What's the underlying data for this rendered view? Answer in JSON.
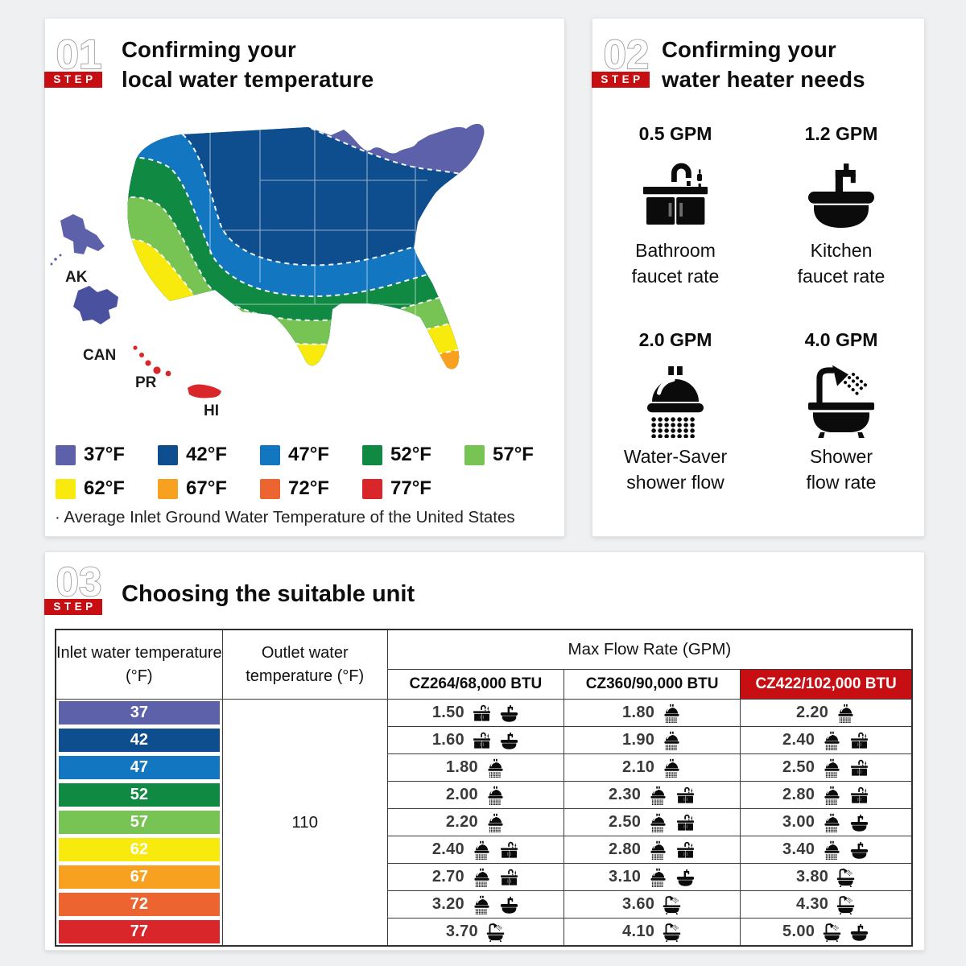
{
  "page_bg": "#eff0f2",
  "accent_red": "#c60e13",
  "step1": {
    "badge": {
      "number": "01",
      "label": "STEP"
    },
    "title_lines": [
      "Confirming your",
      "local water temperature"
    ],
    "map_labels": {
      "ak": "AK",
      "can": "CAN",
      "pr": "PR",
      "hi": "HI"
    },
    "legend": [
      {
        "label": "37°F",
        "color": "#5c61a9"
      },
      {
        "label": "42°F",
        "color": "#0f4e8e"
      },
      {
        "label": "47°F",
        "color": "#1276c1"
      },
      {
        "label": "52°F",
        "color": "#108a43"
      },
      {
        "label": "57°F",
        "color": "#77c353"
      },
      {
        "label": "62°F",
        "color": "#f8ea0d"
      },
      {
        "label": "67°F",
        "color": "#f8a01f"
      },
      {
        "label": "72°F",
        "color": "#ec6530"
      },
      {
        "label": "77°F",
        "color": "#d8262b"
      }
    ],
    "note": "· Average Inlet Ground Water Temperature of the United States"
  },
  "step2": {
    "badge": {
      "number": "02",
      "label": "STEP"
    },
    "title_lines": [
      "Confirming your",
      "water heater needs"
    ],
    "items": [
      {
        "gpm": "0.5 GPM",
        "icon": "bathroom-faucet",
        "caption": "Bathroom\nfaucet rate"
      },
      {
        "gpm": "1.2 GPM",
        "icon": "kitchen-faucet",
        "caption": "Kitchen\nfaucet rate"
      },
      {
        "gpm": "2.0 GPM",
        "icon": "shower-head",
        "caption": "Water-Saver\nshower flow"
      },
      {
        "gpm": "4.0 GPM",
        "icon": "bathtub",
        "caption": "Shower\nflow rate"
      }
    ]
  },
  "step3": {
    "badge": {
      "number": "03",
      "label": "STEP"
    },
    "title": "Choosing the suitable unit",
    "table": {
      "inlet_header": "Inlet water temperature (°F)",
      "outlet_header": "Outlet water temperature (°F)",
      "flow_header": "Max Flow Rate (GPM)",
      "models": [
        "CZ264/68,000 BTU",
        "CZ360/90,000 BTU",
        "CZ422/102,000 BTU"
      ],
      "highlight_model_index": 2,
      "outlet_value": "110",
      "rows": [
        {
          "inlet": "37",
          "color": "#5c61a9",
          "cells": [
            {
              "value": "1.50",
              "icons": [
                "bathroom-faucet",
                "kitchen-faucet"
              ]
            },
            {
              "value": "1.80",
              "icons": [
                "shower-head"
              ]
            },
            {
              "value": "2.20",
              "icons": [
                "shower-head"
              ]
            }
          ]
        },
        {
          "inlet": "42",
          "color": "#0f4e8e",
          "cells": [
            {
              "value": "1.60",
              "icons": [
                "bathroom-faucet",
                "kitchen-faucet"
              ]
            },
            {
              "value": "1.90",
              "icons": [
                "shower-head"
              ]
            },
            {
              "value": "2.40",
              "icons": [
                "shower-head",
                "bathroom-faucet"
              ]
            }
          ]
        },
        {
          "inlet": "47",
          "color": "#1276c1",
          "cells": [
            {
              "value": "1.80",
              "icons": [
                "shower-head"
              ]
            },
            {
              "value": "2.10",
              "icons": [
                "shower-head"
              ]
            },
            {
              "value": "2.50",
              "icons": [
                "shower-head",
                "bathroom-faucet"
              ]
            }
          ]
        },
        {
          "inlet": "52",
          "color": "#108a43",
          "cells": [
            {
              "value": "2.00",
              "icons": [
                "shower-head"
              ]
            },
            {
              "value": "2.30",
              "icons": [
                "shower-head",
                "bathroom-faucet"
              ]
            },
            {
              "value": "2.80",
              "icons": [
                "shower-head",
                "bathroom-faucet"
              ]
            }
          ]
        },
        {
          "inlet": "57",
          "color": "#77c353",
          "cells": [
            {
              "value": "2.20",
              "icons": [
                "shower-head"
              ]
            },
            {
              "value": "2.50",
              "icons": [
                "shower-head",
                "bathroom-faucet"
              ]
            },
            {
              "value": "3.00",
              "icons": [
                "shower-head",
                "kitchen-faucet"
              ]
            }
          ]
        },
        {
          "inlet": "62",
          "color": "#f8ea0d",
          "cells": [
            {
              "value": "2.40",
              "icons": [
                "shower-head",
                "bathroom-faucet"
              ]
            },
            {
              "value": "2.80",
              "icons": [
                "shower-head",
                "bathroom-faucet"
              ]
            },
            {
              "value": "3.40",
              "icons": [
                "shower-head",
                "kitchen-faucet"
              ]
            }
          ]
        },
        {
          "inlet": "67",
          "color": "#f8a01f",
          "cells": [
            {
              "value": "2.70",
              "icons": [
                "shower-head",
                "bathroom-faucet"
              ]
            },
            {
              "value": "3.10",
              "icons": [
                "shower-head",
                "kitchen-faucet"
              ]
            },
            {
              "value": "3.80",
              "icons": [
                "bathtub"
              ]
            }
          ]
        },
        {
          "inlet": "72",
          "color": "#ec6530",
          "cells": [
            {
              "value": "3.20",
              "icons": [
                "shower-head",
                "kitchen-faucet"
              ]
            },
            {
              "value": "3.60",
              "icons": [
                "bathtub"
              ]
            },
            {
              "value": "4.30",
              "icons": [
                "bathtub"
              ]
            }
          ]
        },
        {
          "inlet": "77",
          "color": "#d8262b",
          "cells": [
            {
              "value": "3.70",
              "icons": [
                "bathtub"
              ]
            },
            {
              "value": "4.10",
              "icons": [
                "bathtub"
              ]
            },
            {
              "value": "5.00",
              "icons": [
                "bathtub",
                "kitchen-faucet"
              ]
            }
          ]
        }
      ]
    }
  }
}
